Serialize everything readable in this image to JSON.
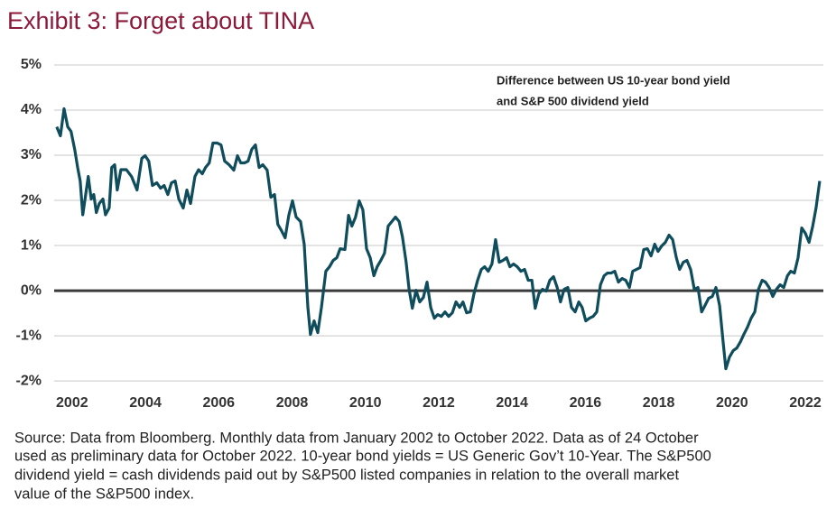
{
  "chart_data": {
    "type": "line",
    "title": "Exhibit 3: Forget about TINA",
    "annotation": [
      "Difference between US 10-year bond yield",
      "and S&P 500 dividend yield"
    ],
    "source": [
      "Source: Data from Bloomberg. Monthly data from January 2002 to October 2022. Data as of 24 October",
      "used as preliminary data for October 2022. 10-year bond yields = US Generic Gov’t 10-Year. The S&P500",
      "dividend yield = cash dividends paid out by S&P500 listed companies in relation to the overall market",
      "value of the S&P500 index."
    ],
    "xlim": [
      2001.93,
      2022.91
    ],
    "xticks": [
      2002,
      2004,
      2006,
      2008,
      2010,
      2012,
      2014,
      2016,
      2018,
      2020,
      2022
    ],
    "ylim": [
      -2.1,
      5.0
    ],
    "yticks": [
      {
        "value": 5,
        "label": "5%"
      },
      {
        "value": 4,
        "label": "4%"
      },
      {
        "value": 3,
        "label": "3%"
      },
      {
        "value": 2,
        "label": "2%"
      },
      {
        "value": 1,
        "label": "1%"
      },
      {
        "value": 0,
        "label": "0%"
      },
      {
        "value": -1,
        "label": "-1%"
      },
      {
        "value": -2,
        "label": "-2%"
      }
    ],
    "grid": true,
    "series": [
      {
        "color": "#0f4c5c",
        "x": [
          2002.0,
          2002.1,
          2002.2,
          2002.3,
          2002.39,
          2002.49,
          2002.57,
          2002.64,
          2002.71,
          2002.79,
          2002.86,
          2002.94,
          2003.01,
          2003.08,
          2003.16,
          2003.26,
          2003.33,
          2003.43,
          2003.5,
          2003.58,
          2003.65,
          2003.75,
          2003.9,
          2004.04,
          2004.19,
          2004.32,
          2004.41,
          2004.51,
          2004.61,
          2004.73,
          2004.83,
          2004.93,
          2005.03,
          2005.13,
          2005.23,
          2005.33,
          2005.45,
          2005.55,
          2005.65,
          2005.77,
          2005.87,
          2005.97,
          2006.06,
          2006.16,
          2006.26,
          2006.38,
          2006.48,
          2006.58,
          2006.7,
          2006.83,
          2006.93,
          2007.02,
          2007.12,
          2007.22,
          2007.32,
          2007.42,
          2007.52,
          2007.62,
          2007.74,
          2007.84,
          2007.94,
          2008.03,
          2008.13,
          2008.23,
          2008.33,
          2008.43,
          2008.53,
          2008.65,
          2008.75,
          2008.85,
          2008.92,
          2009.02,
          2009.12,
          2009.22,
          2009.34,
          2009.44,
          2009.54,
          2009.64,
          2009.73,
          2009.86,
          2009.96,
          2010.05,
          2010.15,
          2010.25,
          2010.35,
          2010.45,
          2010.55,
          2010.65,
          2010.74,
          2010.84,
          2010.94,
          2011.04,
          2011.14,
          2011.24,
          2011.34,
          2011.43,
          2011.53,
          2011.61,
          2011.7,
          2011.8,
          2011.9,
          2012.0,
          2012.1,
          2012.2,
          2012.3,
          2012.39,
          2012.49,
          2012.59,
          2012.69,
          2012.79,
          2012.89,
          2012.99,
          2013.08,
          2013.18,
          2013.28,
          2013.38,
          2013.48,
          2013.58,
          2013.67,
          2013.77,
          2013.87,
          2013.97,
          2014.07,
          2014.17,
          2014.27,
          2014.36,
          2014.46,
          2014.56,
          2014.66,
          2014.76,
          2014.86,
          2014.96,
          2015.05,
          2015.15,
          2015.25,
          2015.35,
          2015.45,
          2015.55,
          2015.65,
          2015.74,
          2015.84,
          2015.94,
          2016.04,
          2016.14,
          2016.24,
          2016.33,
          2016.43,
          2016.53,
          2016.63,
          2016.73,
          2016.83,
          2016.93,
          2017.02,
          2017.12,
          2017.22,
          2017.32,
          2017.42,
          2017.52,
          2017.62,
          2017.71,
          2017.81,
          2017.91,
          2018.01,
          2018.11,
          2018.21,
          2018.31,
          2018.4,
          2018.5,
          2018.6,
          2018.7,
          2018.8,
          2018.9,
          2018.99,
          2019.09,
          2019.19,
          2019.29,
          2019.39,
          2019.49,
          2019.59,
          2019.68,
          2019.78,
          2019.88,
          2019.98,
          2020.08,
          2020.18,
          2020.25,
          2020.35,
          2020.45,
          2020.55,
          2020.65,
          2020.74,
          2020.84,
          2020.94,
          2021.04,
          2021.14,
          2021.24,
          2021.33,
          2021.43,
          2021.53,
          2021.63,
          2021.73,
          2021.83,
          2021.93,
          2022.02,
          2022.12,
          2022.22,
          2022.32,
          2022.42,
          2022.52,
          2022.62,
          2022.71,
          2022.81
        ],
        "values": [
          3.63,
          3.43,
          4.03,
          3.63,
          3.53,
          3.13,
          2.73,
          2.43,
          1.68,
          2.13,
          2.53,
          2.03,
          2.13,
          1.73,
          1.93,
          2.03,
          1.68,
          1.83,
          2.73,
          2.79,
          2.23,
          2.68,
          2.68,
          2.53,
          2.23,
          2.93,
          2.99,
          2.87,
          2.33,
          2.39,
          2.27,
          2.33,
          2.13,
          2.39,
          2.43,
          2.03,
          1.83,
          2.23,
          1.93,
          2.53,
          2.68,
          2.59,
          2.73,
          2.83,
          3.27,
          3.27,
          3.23,
          2.87,
          2.79,
          2.67,
          2.99,
          2.83,
          2.83,
          2.87,
          3.13,
          3.23,
          2.73,
          2.79,
          2.67,
          2.07,
          2.13,
          1.47,
          1.33,
          1.17,
          1.67,
          1.99,
          1.63,
          1.53,
          1.03,
          -0.37,
          -0.97,
          -0.67,
          -0.93,
          -0.37,
          0.43,
          0.53,
          0.67,
          0.73,
          0.93,
          0.91,
          1.67,
          1.43,
          1.63,
          1.99,
          1.79,
          0.93,
          0.73,
          0.33,
          0.53,
          0.67,
          0.83,
          1.43,
          1.53,
          1.63,
          1.53,
          1.19,
          0.63,
          0.03,
          -0.39,
          0.01,
          -0.25,
          -0.15,
          0.19,
          -0.37,
          -0.61,
          -0.53,
          -0.57,
          -0.47,
          -0.57,
          -0.49,
          -0.25,
          -0.37,
          -0.25,
          -0.49,
          -0.47,
          -0.07,
          0.23,
          0.47,
          0.53,
          0.43,
          0.59,
          1.13,
          0.63,
          0.67,
          0.73,
          0.53,
          0.59,
          0.53,
          0.43,
          0.47,
          0.23,
          0.23,
          -0.39,
          -0.07,
          0.03,
          -0.01,
          0.23,
          0.31,
          0.07,
          -0.25,
          0.03,
          0.07,
          -0.37,
          -0.47,
          -0.25,
          -0.37,
          -0.67,
          -0.61,
          -0.57,
          -0.47,
          0.13,
          0.33,
          0.39,
          0.39,
          0.43,
          0.19,
          0.27,
          0.23,
          0.07,
          0.43,
          0.47,
          0.51,
          0.91,
          0.93,
          0.77,
          1.03,
          0.87,
          0.99,
          1.07,
          1.23,
          1.13,
          0.73,
          0.47,
          0.63,
          0.67,
          0.47,
          0.03,
          0.07,
          -0.47,
          -0.33,
          -0.17,
          -0.13,
          0.07,
          -0.33,
          -1.17,
          -1.73,
          -1.47,
          -1.33,
          -1.27,
          -1.13,
          -0.97,
          -0.81,
          -0.61,
          -0.47,
          0.03,
          0.23,
          0.19,
          0.07,
          -0.13,
          0.03,
          0.13,
          0.07,
          0.33,
          0.43,
          0.39,
          0.73,
          1.39,
          1.27,
          1.07,
          1.43,
          1.83,
          2.43
        ]
      }
    ]
  }
}
